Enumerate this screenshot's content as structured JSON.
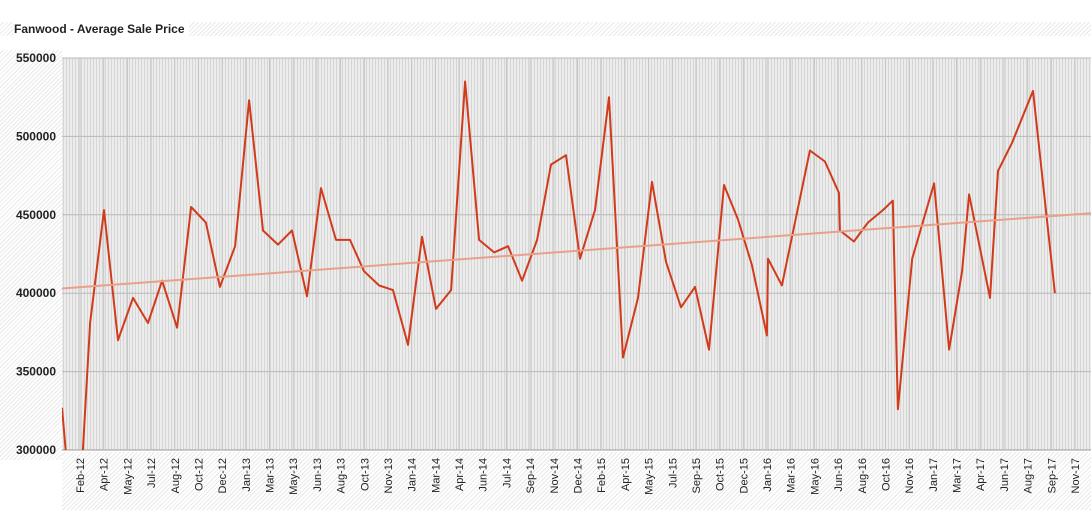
{
  "chart_data": {
    "type": "line",
    "title": "Fanwood - Average Sale Price",
    "xlabel": "",
    "ylabel": "",
    "ylim": [
      300000,
      550000
    ],
    "yticks": [
      "300000",
      "350000",
      "400000",
      "450000",
      "500000",
      "550000"
    ],
    "x_unit": "months since Jan-12",
    "xlim": [
      -0.25,
      71.1
    ],
    "xtick_labels": [
      "Feb-12",
      "Apr-12",
      "May-12",
      "Jul-12",
      "Aug-12",
      "Oct-12",
      "Dec-12",
      "Jan-13",
      "Mar-13",
      "May-13",
      "Jun-13",
      "Aug-13",
      "Oct-13",
      "Nov-13",
      "Jan-14",
      "Mar-14",
      "Apr-14",
      "Jun-14",
      "Jul-14",
      "Sep-14",
      "Nov-14",
      "Dec-14",
      "Feb-15",
      "Apr-15",
      "May-15",
      "Jul-15",
      "Sep-15",
      "Oct-15",
      "Dec-15",
      "Jan-16",
      "Mar-16",
      "May-16",
      "Jun-16",
      "Aug-16",
      "Oct-16",
      "Nov-16",
      "Jan-17",
      "Mar-17",
      "Apr-17",
      "Jun-17",
      "Aug-17",
      "Sep-17",
      "Nov-17"
    ],
    "grid": true,
    "series": [
      {
        "name": "Average Sale Price",
        "color": "#d13b1c",
        "x": [
          -0.25,
          0.1,
          1.14,
          1.7,
          2.66,
          3.63,
          4.67,
          5.71,
          6.69,
          7.73,
          8.7,
          9.73,
          10.7,
          11.75,
          12.72,
          13.69,
          14.73,
          15.7,
          16.74,
          17.71,
          18.75,
          19.72,
          20.69,
          21.73,
          22.7,
          23.74,
          24.71,
          25.68,
          26.73,
          27.7,
          28.67,
          29.71,
          30.68,
          31.65,
          32.69,
          33.66,
          34.7,
          35.67,
          36.71,
          37.68,
          38.65,
          39.69,
          40.66,
          41.63,
          42.67,
          43.64,
          44.61,
          45.65,
          46.62,
          47.59,
          48.63,
          48.7,
          49.67,
          50.64,
          51.61,
          52.65,
          53.62,
          53.69,
          54.66,
          55.63,
          56.67,
          57.36,
          57.71,
          58.7,
          60.22,
          61.26,
          62.16,
          62.65,
          64.1,
          64.65,
          65.63,
          67.08,
          68.6
        ],
        "y": [
          327000,
          290000,
          290000,
          381000,
          453000,
          370000,
          397000,
          381000,
          408000,
          378000,
          455000,
          445000,
          404000,
          430000,
          523000,
          440000,
          431000,
          440000,
          398000,
          467000,
          434000,
          434000,
          414000,
          405000,
          402000,
          367000,
          436000,
          390000,
          402000,
          535000,
          434000,
          426000,
          430000,
          408000,
          434000,
          482000,
          488000,
          422000,
          453000,
          525000,
          359000,
          397000,
          471000,
          420000,
          391000,
          404000,
          364000,
          469000,
          447000,
          418000,
          373000,
          422000,
          405000,
          448000,
          491000,
          484000,
          464000,
          440000,
          433000,
          445000,
          453000,
          459000,
          326000,
          422000,
          470000,
          364000,
          414000,
          463000,
          397000,
          478000,
          496000,
          529000,
          400000
        ]
      },
      {
        "name": "Trend",
        "color": "#e8a08a",
        "x": [
          -0.25,
          71.1
        ],
        "y": [
          403000,
          451000
        ]
      }
    ]
  }
}
